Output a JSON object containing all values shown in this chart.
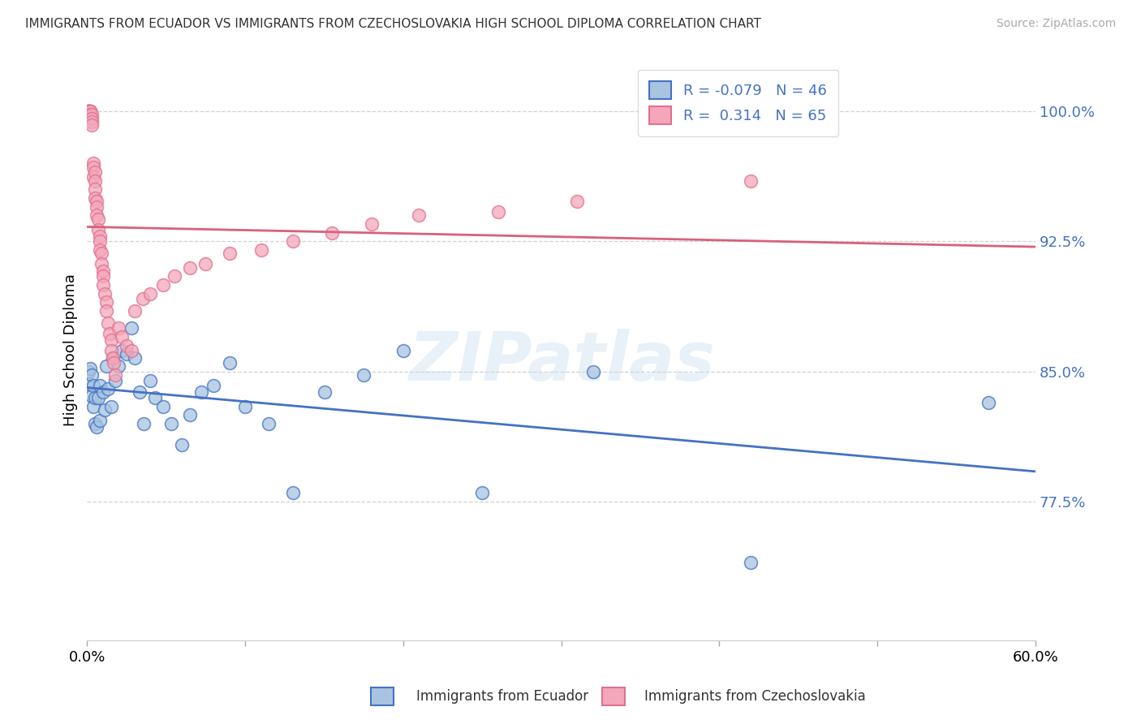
{
  "title": "IMMIGRANTS FROM ECUADOR VS IMMIGRANTS FROM CZECHOSLOVAKIA HIGH SCHOOL DIPLOMA CORRELATION CHART",
  "source": "Source: ZipAtlas.com",
  "ylabel": "High School Diploma",
  "ytick_labels": [
    "77.5%",
    "85.0%",
    "92.5%",
    "100.0%"
  ],
  "ytick_values": [
    0.775,
    0.85,
    0.925,
    1.0
  ],
  "xlim": [
    0.0,
    0.6
  ],
  "ylim": [
    0.695,
    1.03
  ],
  "legend_r_ecuador": "-0.079",
  "legend_n_ecuador": "46",
  "legend_r_czech": "0.314",
  "legend_n_czech": "65",
  "legend_label_ecuador": "Immigrants from Ecuador",
  "legend_label_czech": "Immigrants from Czechoslovakia",
  "color_ecuador_fill": "#a8c4e0",
  "color_czech_fill": "#f4a7b9",
  "color_ecuador_edge": "#4472c4",
  "color_czech_edge": "#e07090",
  "color_ecuador_line": "#4472c4",
  "color_czech_line": "#d9607a",
  "ecuador_x": [
    0.001,
    0.001,
    0.002,
    0.003,
    0.003,
    0.004,
    0.004,
    0.005,
    0.005,
    0.006,
    0.007,
    0.008,
    0.008,
    0.01,
    0.011,
    0.012,
    0.013,
    0.015,
    0.016,
    0.018,
    0.02,
    0.022,
    0.025,
    0.028,
    0.03,
    0.033,
    0.036,
    0.04,
    0.043,
    0.048,
    0.053,
    0.06,
    0.065,
    0.072,
    0.08,
    0.09,
    0.1,
    0.115,
    0.13,
    0.15,
    0.175,
    0.2,
    0.25,
    0.32,
    0.42,
    0.57
  ],
  "ecuador_y": [
    0.85,
    0.843,
    0.852,
    0.848,
    0.836,
    0.842,
    0.83,
    0.835,
    0.82,
    0.818,
    0.835,
    0.842,
    0.822,
    0.838,
    0.828,
    0.853,
    0.84,
    0.83,
    0.858,
    0.845,
    0.853,
    0.862,
    0.86,
    0.875,
    0.858,
    0.838,
    0.82,
    0.845,
    0.835,
    0.83,
    0.82,
    0.808,
    0.825,
    0.838,
    0.842,
    0.855,
    0.83,
    0.82,
    0.78,
    0.838,
    0.848,
    0.862,
    0.78,
    0.85,
    0.74,
    0.832
  ],
  "czech_x": [
    0.001,
    0.001,
    0.001,
    0.001,
    0.001,
    0.002,
    0.002,
    0.002,
    0.002,
    0.002,
    0.002,
    0.003,
    0.003,
    0.003,
    0.003,
    0.004,
    0.004,
    0.004,
    0.005,
    0.005,
    0.005,
    0.005,
    0.006,
    0.006,
    0.006,
    0.007,
    0.007,
    0.008,
    0.008,
    0.008,
    0.009,
    0.009,
    0.01,
    0.01,
    0.01,
    0.011,
    0.012,
    0.012,
    0.013,
    0.014,
    0.015,
    0.015,
    0.016,
    0.017,
    0.018,
    0.02,
    0.022,
    0.025,
    0.028,
    0.03,
    0.035,
    0.04,
    0.048,
    0.055,
    0.065,
    0.075,
    0.09,
    0.11,
    0.13,
    0.155,
    0.18,
    0.21,
    0.26,
    0.31,
    0.42
  ],
  "czech_y": [
    1.0,
    1.0,
    1.0,
    1.0,
    1.0,
    1.0,
    1.0,
    1.0,
    1.0,
    0.998,
    0.996,
    0.998,
    0.996,
    0.994,
    0.992,
    0.97,
    0.968,
    0.962,
    0.965,
    0.96,
    0.955,
    0.95,
    0.948,
    0.945,
    0.94,
    0.938,
    0.932,
    0.928,
    0.925,
    0.92,
    0.918,
    0.912,
    0.908,
    0.905,
    0.9,
    0.895,
    0.89,
    0.885,
    0.878,
    0.872,
    0.868,
    0.862,
    0.858,
    0.855,
    0.848,
    0.875,
    0.87,
    0.865,
    0.862,
    0.885,
    0.892,
    0.895,
    0.9,
    0.905,
    0.91,
    0.912,
    0.918,
    0.92,
    0.925,
    0.93,
    0.935,
    0.94,
    0.942,
    0.948,
    0.96
  ],
  "watermark_text": "ZIPatlas",
  "background_color": "#ffffff"
}
